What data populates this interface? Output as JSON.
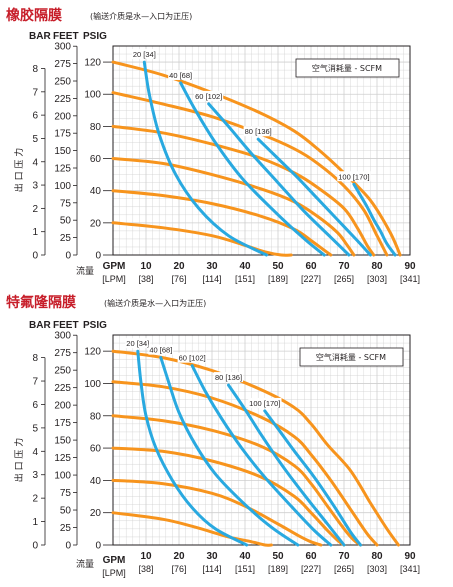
{
  "chart_data": [
    {
      "type": "line",
      "title": "橡胶隔膜",
      "subtitle": "(输送介质是水—入口为正压)",
      "y_units_header": [
        "BAR",
        "FEET",
        "PSIG"
      ],
      "ylabel": "出 口 压 力",
      "xlabel": "流量",
      "x_unit_primary": "GPM",
      "x_unit_secondary": "[LPM]",
      "x_ticks": [
        10,
        20,
        30,
        40,
        50,
        60,
        70,
        80,
        90
      ],
      "x_ticks_lpm": [
        "[38]",
        "[76]",
        "[114]",
        "[151]",
        "[189]",
        "[227]",
        "[265]",
        "[303]",
        "[341]"
      ],
      "xlim": [
        0,
        90
      ],
      "ylim": [
        0,
        130
      ],
      "psig_ticks": [
        0,
        20,
        40,
        60,
        80,
        100,
        120
      ],
      "feet_ticks": [
        0,
        25,
        50,
        75,
        100,
        125,
        150,
        175,
        200,
        225,
        250,
        275,
        300
      ],
      "bar_ticks": [
        0,
        1,
        2,
        3,
        4,
        5,
        6,
        7,
        8
      ],
      "legend": "空气消耗量 - SCFM",
      "grid": true,
      "pressure_series": [
        {
          "x": [
            0,
            15,
            30,
            45,
            55,
            62,
            70,
            78,
            84,
            87
          ],
          "y": [
            120,
            112,
            101,
            88,
            77,
            66,
            51,
            34,
            14,
            0
          ]
        },
        {
          "x": [
            0,
            15,
            30,
            45,
            55,
            62,
            70,
            76,
            80,
            83
          ],
          "y": [
            101,
            94,
            86,
            75,
            66,
            57,
            43,
            28,
            12,
            0
          ]
        },
        {
          "x": [
            0,
            15,
            30,
            45,
            55,
            62,
            70,
            74,
            77,
            79
          ],
          "y": [
            80,
            76,
            69,
            60,
            51,
            42,
            29,
            17,
            6,
            0
          ]
        },
        {
          "x": [
            0,
            15,
            30,
            45,
            55,
            62,
            68,
            71,
            73
          ],
          "y": [
            60,
            57,
            50,
            41,
            33,
            24,
            14,
            6,
            0
          ]
        },
        {
          "x": [
            0,
            15,
            30,
            45,
            55,
            60,
            64,
            66
          ],
          "y": [
            40,
            37,
            32,
            24,
            16,
            9,
            3,
            0
          ]
        },
        {
          "x": [
            0,
            15,
            30,
            40,
            46,
            51,
            54
          ],
          "y": [
            20,
            17,
            12,
            6,
            2,
            0,
            0
          ]
        }
      ],
      "air_series": [
        {
          "name": "20 [34]",
          "x": [
            9.5,
            11,
            14,
            19,
            26,
            35,
            46.5
          ],
          "y": [
            120,
            100,
            75,
            50,
            29,
            12,
            0
          ]
        },
        {
          "name": "40 [68]",
          "x": [
            20.5,
            25,
            31,
            39,
            49,
            58,
            64
          ],
          "y": [
            107,
            90,
            70,
            48,
            27,
            10,
            0
          ]
        },
        {
          "name": "60 [102]",
          "x": [
            29,
            35,
            42,
            50,
            58,
            66,
            71.5
          ],
          "y": [
            94,
            80,
            63,
            45,
            27,
            11,
            0
          ]
        },
        {
          "name": "80 [136]",
          "x": [
            44,
            50,
            56,
            62,
            68,
            74,
            78
          ],
          "y": [
            72,
            60,
            48,
            35,
            22,
            9,
            0
          ]
        },
        {
          "name": "100 [170]",
          "x": [
            73,
            75,
            77,
            79,
            81,
            83,
            85.5
          ],
          "y": [
            44,
            37,
            30,
            22,
            15,
            7,
            0
          ]
        }
      ]
    },
    {
      "type": "line",
      "title": "特氟隆隔膜",
      "subtitle": "(输送介质是水—入口为正压)",
      "y_units_header": [
        "BAR",
        "FEET",
        "PSIG"
      ],
      "ylabel": "出 口 压 力",
      "xlabel": "流量",
      "x_unit_primary": "GPM",
      "x_unit_secondary": "[LPM]",
      "x_ticks": [
        10,
        20,
        30,
        40,
        50,
        60,
        70,
        80,
        90
      ],
      "x_ticks_lpm": [
        "[38]",
        "[76]",
        "[114]",
        "[151]",
        "[189]",
        "[227]",
        "[265]",
        "[303]",
        "[341]"
      ],
      "xlim": [
        0,
        90
      ],
      "ylim": [
        0,
        130
      ],
      "psig_ticks": [
        0,
        20,
        40,
        60,
        80,
        100,
        120
      ],
      "feet_ticks": [
        0,
        25,
        50,
        75,
        100,
        125,
        150,
        175,
        200,
        225,
        250,
        275,
        300
      ],
      "bar_ticks": [
        0,
        1,
        2,
        3,
        4,
        5,
        6,
        7,
        8
      ],
      "legend": "空气消耗量 - SCFM",
      "grid": true,
      "pressure_series": [
        {
          "x": [
            0,
            15,
            30,
            45,
            55,
            60,
            65,
            72,
            78,
            83,
            86.5
          ],
          "y": [
            120,
            116,
            108,
            96,
            85,
            75,
            62,
            46,
            26,
            10,
            0
          ]
        },
        {
          "x": [
            0,
            15,
            30,
            45,
            55,
            60,
            66,
            72,
            77,
            80
          ],
          "y": [
            101,
            98,
            91,
            79,
            67,
            56,
            40,
            22,
            7,
            0
          ]
        },
        {
          "x": [
            0,
            15,
            30,
            45,
            55,
            60,
            65,
            70,
            73,
            75
          ],
          "y": [
            80,
            77,
            71,
            61,
            49,
            38,
            24,
            10,
            3,
            0
          ]
        },
        {
          "x": [
            0,
            15,
            30,
            45,
            55,
            60,
            65,
            68,
            70
          ],
          "y": [
            60,
            58,
            52,
            42,
            30,
            20,
            9,
            3,
            0
          ]
        },
        {
          "x": [
            0,
            15,
            30,
            40,
            50,
            56,
            60,
            63
          ],
          "y": [
            40,
            38,
            32,
            24,
            13,
            6,
            2,
            0
          ]
        },
        {
          "x": [
            0,
            15,
            25,
            35,
            42,
            46,
            48
          ],
          "y": [
            20,
            16,
            11,
            5,
            2,
            0,
            0
          ]
        }
      ],
      "air_series": [
        {
          "name": "20 [34]",
          "x": [
            7.5,
            8.5,
            10,
            13,
            18,
            24,
            31,
            40.5
          ],
          "y": [
            120,
            100,
            80,
            60,
            40,
            23,
            10,
            0
          ]
        },
        {
          "name": "40 [68]",
          "x": [
            14.5,
            17,
            20,
            25,
            31,
            39,
            48,
            56
          ],
          "y": [
            116,
            100,
            82,
            62,
            44,
            27,
            11,
            0
          ]
        },
        {
          "name": "60 [102]",
          "x": [
            24,
            28,
            33,
            39,
            46,
            54,
            61,
            66
          ],
          "y": [
            111,
            95,
            78,
            60,
            42,
            24,
            9,
            0
          ]
        },
        {
          "name": "80 [136]",
          "x": [
            35,
            40,
            45,
            51,
            58,
            65,
            70
          ],
          "y": [
            99,
            84,
            68,
            50,
            31,
            13,
            0
          ]
        },
        {
          "name": "100 [170]",
          "x": [
            46,
            50,
            55,
            61,
            67,
            72,
            75
          ],
          "y": [
            83,
            72,
            58,
            42,
            24,
            8,
            0
          ]
        }
      ]
    }
  ]
}
